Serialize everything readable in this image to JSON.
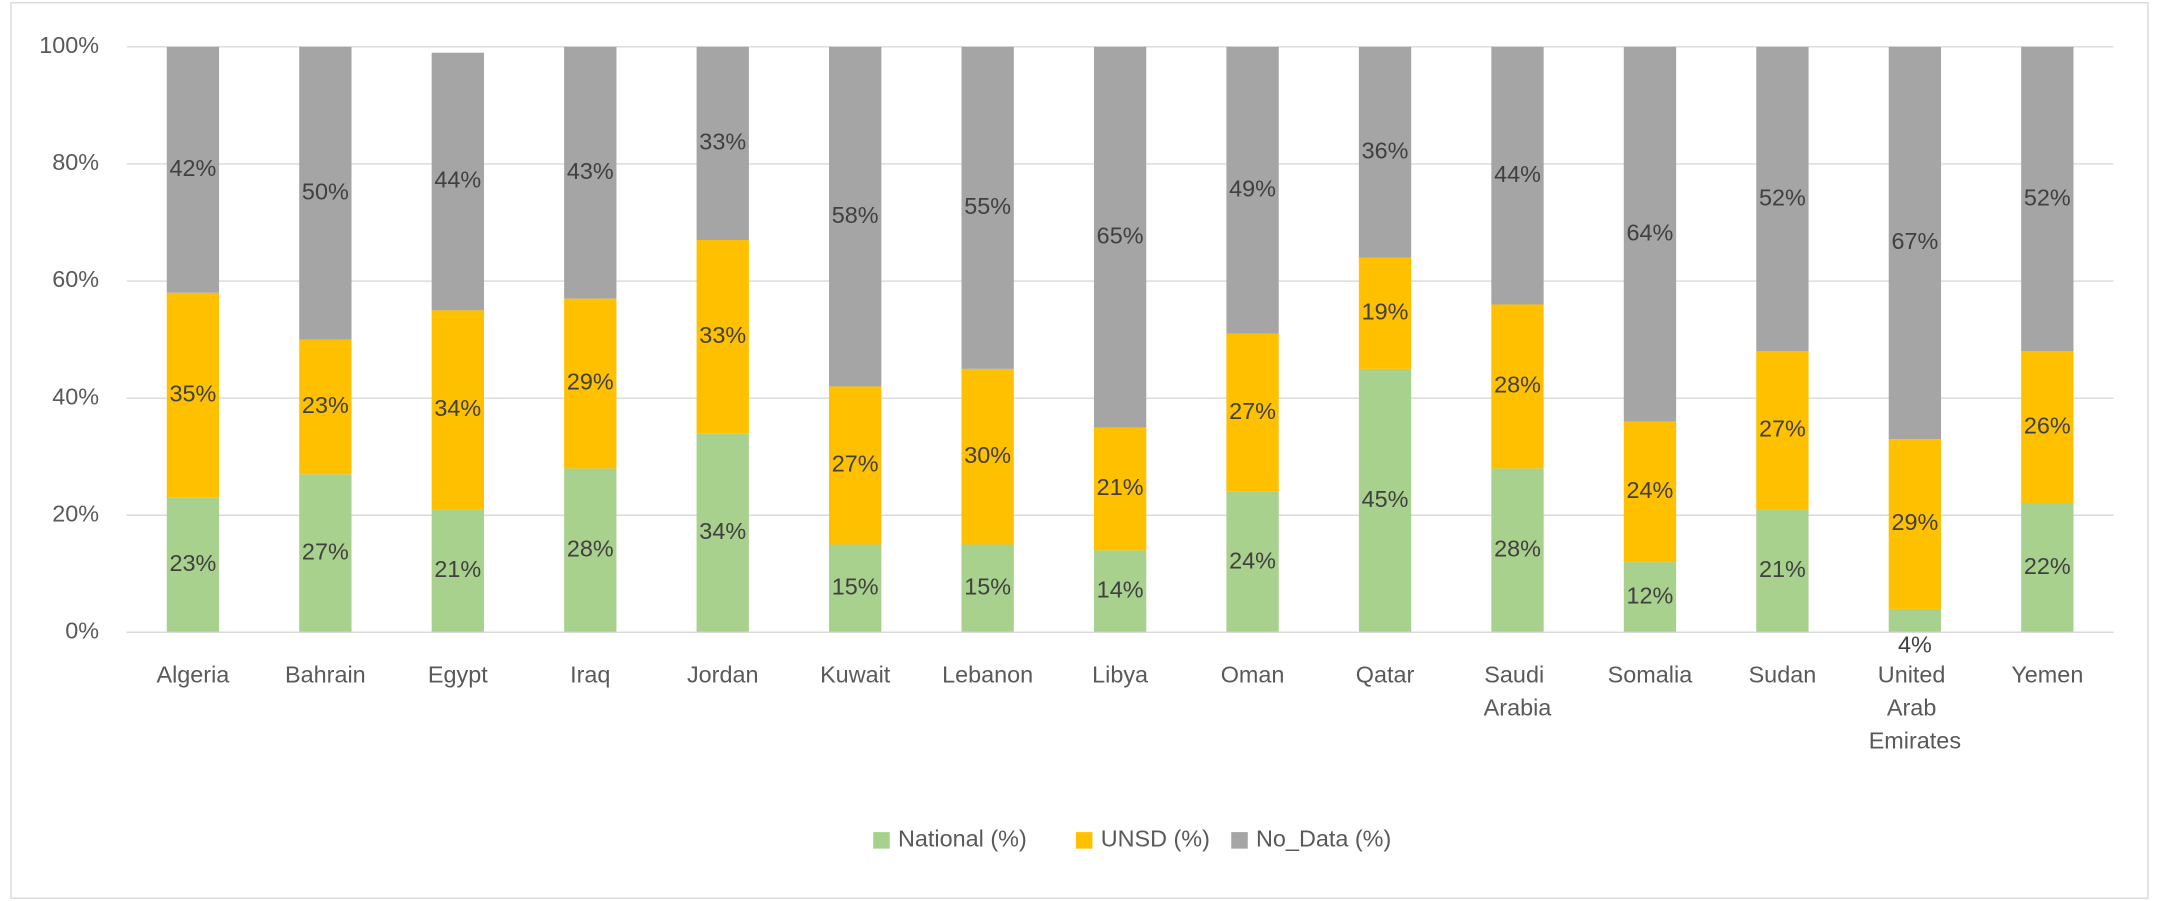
{
  "chart_data": {
    "type": "stacked_bar",
    "categories": [
      "Algeria",
      "Bahrain",
      "Egypt",
      "Iraq",
      "Jordan",
      "Kuwait",
      "Lebanon",
      "Libya",
      "Oman",
      "Qatar",
      "Saudi Arabia",
      "Somalia",
      "Sudan",
      "United Arab Emirates",
      "Yemen"
    ],
    "series": [
      {
        "name": "National (%)",
        "color": "#a9d18e",
        "values": [
          23,
          27,
          21,
          28,
          34,
          15,
          15,
          14,
          24,
          45,
          28,
          12,
          21,
          4,
          22
        ],
        "value_labels": [
          "23%",
          "27%",
          "21%",
          "28%",
          "34%",
          "15%",
          "15%",
          "14%",
          "24%",
          "45%",
          "28%",
          "12%",
          "21%",
          "4%",
          "22%"
        ]
      },
      {
        "name": "UNSD (%)",
        "color": "#ffc000",
        "values": [
          35,
          23,
          34,
          29,
          33,
          27,
          30,
          21,
          27,
          19,
          28,
          24,
          27,
          29,
          26
        ],
        "value_labels": [
          "35%",
          "23%",
          "34%",
          "29%",
          "33%",
          "27%",
          "30%",
          "21%",
          "27%",
          "19%",
          "28%",
          "24%",
          "27%",
          "29%",
          "26%"
        ]
      },
      {
        "name": "No_Data (%)",
        "color": "#a5a5a5",
        "values": [
          42,
          50,
          44,
          43,
          33,
          58,
          55,
          65,
          49,
          36,
          44,
          64,
          52,
          67,
          52
        ],
        "value_labels": [
          "42%",
          "50%",
          "44%",
          "43%",
          "33%",
          "58%",
          "55%",
          "65%",
          "49%",
          "36%",
          "44%",
          "64%",
          "52%",
          "67%",
          "52%"
        ]
      }
    ],
    "ylim": [
      0,
      100
    ],
    "yticks": [
      {
        "value": 0,
        "label": "0%"
      },
      {
        "value": 20,
        "label": "20%"
      },
      {
        "value": 40,
        "label": "40%"
      },
      {
        "value": 60,
        "label": "60%"
      },
      {
        "value": 80,
        "label": "80%"
      },
      {
        "value": 100,
        "label": "100%"
      }
    ],
    "grid": true,
    "legend": "bottom"
  }
}
